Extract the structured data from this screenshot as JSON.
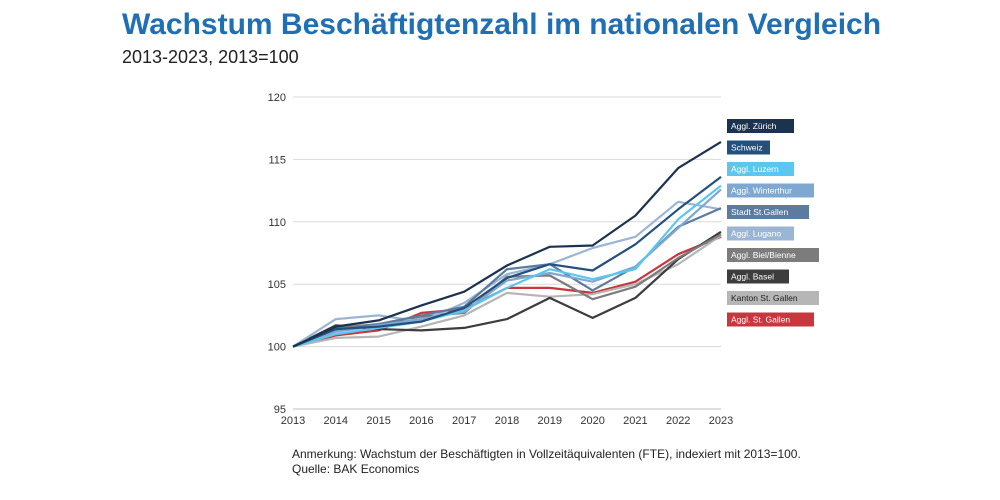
{
  "header": {
    "title": "Wachstum Beschäftigtenzahl im nationalen Vergleich",
    "subtitle": "2013-2023, 2013=100"
  },
  "footer": {
    "note": "Anmerkung: Wachstum der Beschäftigten in Vollzeitäquivalenten (FTE), indexiert mit 2013=100.",
    "source": "Quelle: BAK Economics"
  },
  "chart_data": {
    "type": "line",
    "x": [
      "2013",
      "2014",
      "2015",
      "2016",
      "2017",
      "2018",
      "2019",
      "2020",
      "2021",
      "2022",
      "2023"
    ],
    "ylim": [
      95,
      120
    ],
    "yticks": [
      95,
      100,
      105,
      110,
      115,
      120
    ],
    "grid": true,
    "legend_placement": "right",
    "series": [
      {
        "name": "Aggl. Zürich",
        "color": "#1c3350",
        "values": [
          100,
          101.6,
          102.1,
          103.3,
          104.4,
          106.5,
          108.0,
          108.1,
          110.5,
          114.3,
          116.4
        ]
      },
      {
        "name": "Schweiz",
        "color": "#24507e",
        "values": [
          100,
          101.4,
          101.6,
          102.0,
          103.1,
          105.5,
          106.6,
          106.1,
          108.2,
          111.0,
          113.6
        ]
      },
      {
        "name": "Aggl. Luzern",
        "color": "#5bc7ef",
        "values": [
          100,
          101.0,
          101.5,
          102.0,
          102.9,
          104.7,
          106.2,
          105.4,
          106.2,
          110.2,
          112.9
        ]
      },
      {
        "name": "Aggl. Winterthur",
        "color": "#7ea8d2",
        "values": [
          100,
          101.2,
          101.7,
          102.2,
          102.8,
          105.3,
          105.9,
          105.2,
          106.4,
          109.5,
          112.6
        ]
      },
      {
        "name": "Stadt St.Gallen",
        "color": "#5b7b9f",
        "values": [
          100,
          101.3,
          101.8,
          102.5,
          103.2,
          106.2,
          106.6,
          104.5,
          106.4,
          109.6,
          111.1
        ]
      },
      {
        "name": "Aggl. Lugano",
        "color": "#9ab6d4",
        "values": [
          100,
          102.2,
          102.5,
          102.0,
          103.5,
          105.8,
          106.6,
          107.9,
          108.8,
          111.6,
          111.0
        ]
      },
      {
        "name": "Aggl. Biel/Bienne",
        "color": "#7c7c7c",
        "values": [
          100,
          101.5,
          101.8,
          102.4,
          102.7,
          105.6,
          105.7,
          103.8,
          104.8,
          107.1,
          109.0
        ]
      },
      {
        "name": "Aggl. Basel",
        "color": "#3d3d3d",
        "values": [
          100,
          101.7,
          101.4,
          101.3,
          101.5,
          102.2,
          103.9,
          102.3,
          103.9,
          107.0,
          109.2
        ]
      },
      {
        "name": "Kanton St. Gallen",
        "color": "#b6b6b6",
        "values": [
          100,
          100.7,
          100.8,
          101.6,
          102.5,
          104.3,
          104.0,
          104.2,
          105.0,
          106.6,
          108.9
        ]
      },
      {
        "name": "Aggl. St. Gallen",
        "color": "#c8373d",
        "values": [
          100,
          100.9,
          101.3,
          102.7,
          103.0,
          104.7,
          104.7,
          104.3,
          105.2,
          107.4,
          108.8
        ]
      }
    ]
  }
}
